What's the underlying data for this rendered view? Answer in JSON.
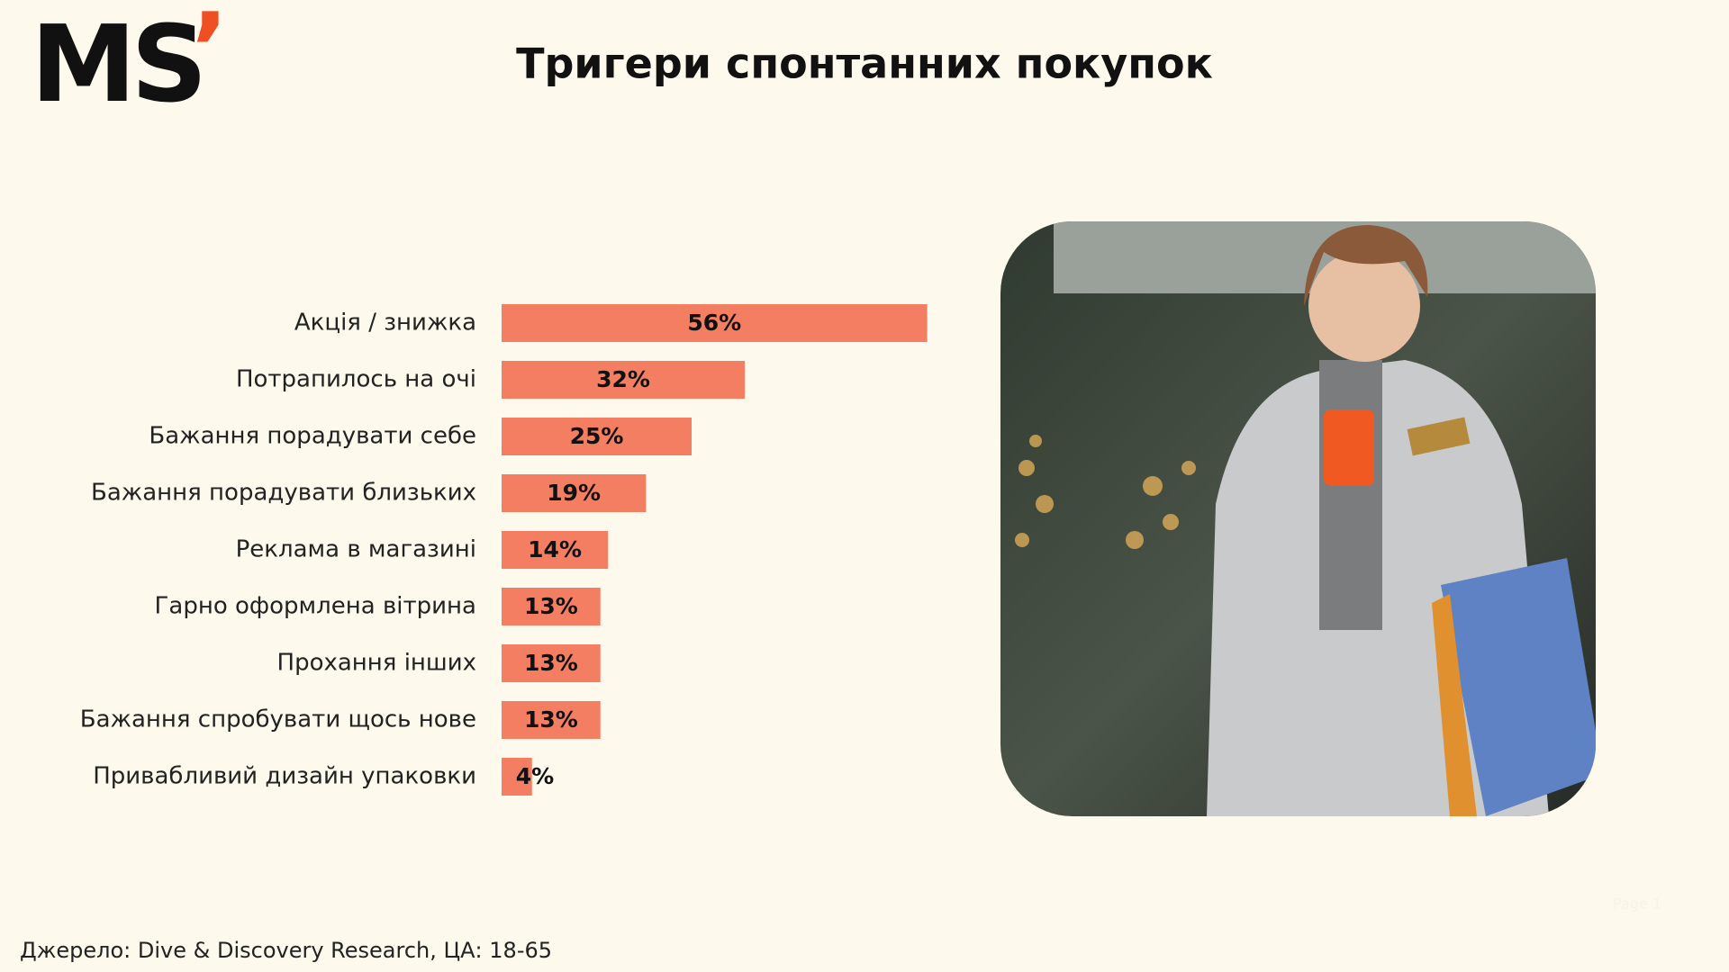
{
  "logo": "MS",
  "logo_mark": "’",
  "chart_data": {
    "type": "bar",
    "orientation": "horizontal",
    "title": "Тригери спонтанних покупок",
    "categories": [
      "Акція / знижка",
      "Потрапилось на очі",
      "Бажання порадувати себе",
      "Бажання порадувати близьких",
      "Реклама в магазині",
      "Гарно оформлена вітрина",
      "Прохання інших",
      "Бажання спробувати щось нове",
      "Привабливий дизайн упаковки"
    ],
    "values": [
      56,
      32,
      25,
      19,
      14,
      13,
      13,
      13,
      4
    ],
    "value_labels": [
      "56%",
      "32%",
      "25%",
      "19%",
      "14%",
      "13%",
      "13%",
      "13%",
      "4%"
    ],
    "color": "#f47e61"
  },
  "source": "Джерело: Dive & Discovery Research, ЦА: 18-65",
  "page_label": "Page 1"
}
